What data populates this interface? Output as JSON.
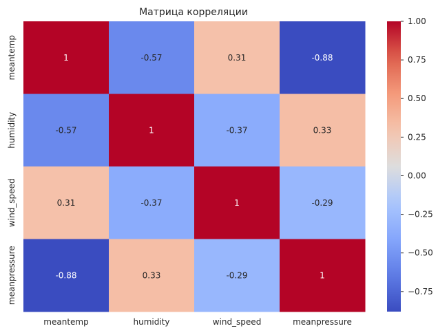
{
  "chart_data": {
    "type": "heatmap",
    "title": "Матрица корреляции",
    "rows": [
      "meantemp",
      "humidity",
      "wind_speed",
      "meanpressure"
    ],
    "columns": [
      "meantemp",
      "humidity",
      "wind_speed",
      "meanpressure"
    ],
    "values": [
      [
        1,
        -0.57,
        0.31,
        -0.88
      ],
      [
        -0.57,
        1,
        -0.37,
        0.33
      ],
      [
        0.31,
        -0.37,
        1,
        -0.29
      ],
      [
        -0.88,
        0.33,
        -0.29,
        1
      ]
    ],
    "cell_labels": [
      [
        "1",
        "-0.57",
        "0.31",
        "-0.88"
      ],
      [
        "-0.57",
        "1",
        "-0.37",
        "0.33"
      ],
      [
        "0.31",
        "-0.37",
        "1",
        "-0.29"
      ],
      [
        "-0.88",
        "0.33",
        "-0.29",
        "1"
      ]
    ],
    "colormap": "coolwarm",
    "vmin": -0.88,
    "vmax": 1.0,
    "colorbar_ticks": [
      1.0,
      0.75,
      0.5,
      0.25,
      0.0,
      -0.25,
      -0.5,
      -0.75
    ],
    "colorbar_tick_labels": [
      "1.00",
      "0.75",
      "0.50",
      "0.25",
      "0.00",
      "−0.25",
      "−0.50",
      "−0.75"
    ],
    "xlabel": "",
    "ylabel": ""
  }
}
